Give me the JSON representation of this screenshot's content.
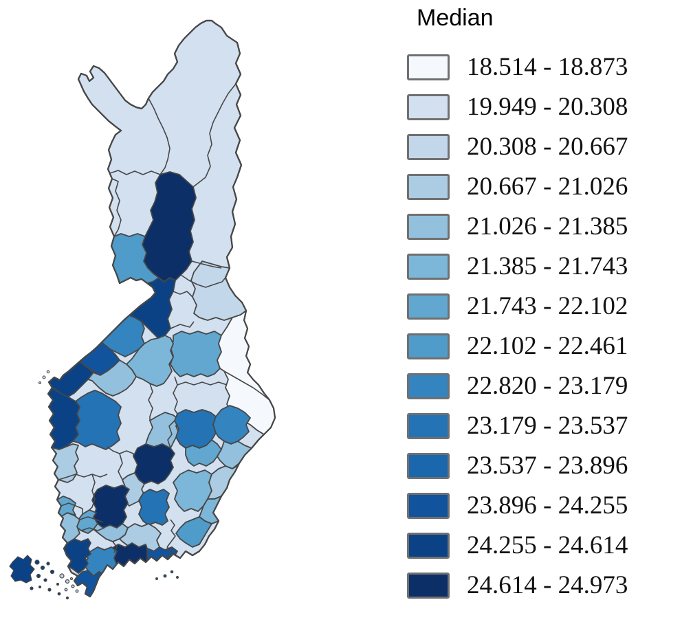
{
  "legend": {
    "title": "Median",
    "entries": [
      {
        "range": "18.514 - 18.873",
        "color": "#f5f9fe"
      },
      {
        "range": "19.949 - 20.308",
        "color": "#d2e0f0"
      },
      {
        "range": "20.308 - 20.667",
        "color": "#c3d7ea"
      },
      {
        "range": "20.667 - 21.026",
        "color": "#abcce3"
      },
      {
        "range": "21.026 - 21.385",
        "color": "#93c1dd"
      },
      {
        "range": "21.385 - 21.743",
        "color": "#7cb7d9"
      },
      {
        "range": "21.743 - 22.102",
        "color": "#61a7d0"
      },
      {
        "range": "22.102 - 22.461",
        "color": "#4f9bc9"
      },
      {
        "range": "22.820 - 23.179",
        "color": "#3484bf"
      },
      {
        "range": "23.179 - 23.537",
        "color": "#2473b4"
      },
      {
        "range": "23.537 - 23.896",
        "color": "#1a67ad"
      },
      {
        "range": "23.896 - 24.255",
        "color": "#11539d"
      },
      {
        "range": "24.255 - 24.614",
        "color": "#0b4286"
      },
      {
        "range": "24.614 - 24.973",
        "color": "#0b2f66"
      }
    ]
  },
  "map": {
    "border_color": "#474747",
    "background_color": "#ffffff",
    "regions": [
      {
        "id": "base",
        "color_index": 2
      },
      {
        "id": "r01",
        "color_index": 14
      },
      {
        "id": "r02",
        "color_index": 8
      },
      {
        "id": "r03",
        "color_index": 13
      },
      {
        "id": "r04",
        "color_index": 9
      },
      {
        "id": "r05",
        "color_index": 3
      },
      {
        "id": "r06",
        "color_index": 7
      },
      {
        "id": "r07",
        "color_index": 1
      },
      {
        "id": "r08",
        "color_index": 6
      },
      {
        "id": "r09",
        "color_index": 12
      },
      {
        "id": "r10",
        "color_index": 13
      },
      {
        "id": "r11",
        "color_index": 5
      },
      {
        "id": "r12",
        "color_index": 13
      },
      {
        "id": "r13",
        "color_index": 10
      },
      {
        "id": "r14",
        "color_index": 4
      },
      {
        "id": "r15",
        "color_index": 5
      },
      {
        "id": "r16",
        "color_index": 14
      },
      {
        "id": "r17",
        "color_index": 4
      },
      {
        "id": "r18",
        "color_index": 10
      },
      {
        "id": "r19",
        "color_index": 9
      },
      {
        "id": "r20",
        "color_index": 7
      },
      {
        "id": "r21",
        "color_index": 5
      },
      {
        "id": "r22",
        "color_index": 6
      },
      {
        "id": "r23",
        "color_index": 4
      },
      {
        "id": "r24",
        "color_index": 6
      },
      {
        "id": "r25",
        "color_index": 8
      },
      {
        "id": "r26",
        "color_index": 10
      },
      {
        "id": "r27",
        "color_index": 14
      },
      {
        "id": "r28",
        "color_index": 7
      },
      {
        "id": "r29",
        "color_index": 5
      },
      {
        "id": "r30",
        "color_index": 4
      },
      {
        "id": "r31",
        "color_index": 14
      },
      {
        "id": "r32",
        "color_index": 12
      },
      {
        "id": "r33",
        "color_index": 9
      },
      {
        "id": "r34",
        "color_index": 12
      },
      {
        "id": "r35",
        "color_index": 13
      },
      {
        "id": "r36",
        "color_index": 5
      },
      {
        "id": "r37",
        "color_index": 7
      },
      {
        "id": "r38",
        "color_index": 13
      },
      {
        "id": "r39",
        "color_index": 3
      },
      {
        "id": "r40",
        "color_index": 12
      },
      {
        "id": "r41",
        "color_index": 3
      }
    ]
  }
}
